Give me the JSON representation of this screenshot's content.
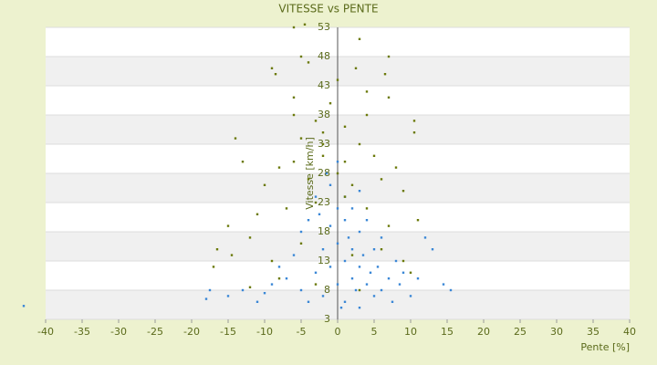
{
  "chart_data": {
    "type": "scatter",
    "title": "VITESSE vs PENTE",
    "x_label": "Pente [%]",
    "y_label": "Vitesse [km/h]",
    "xlim": [
      -40,
      40
    ],
    "xticks": [
      -40,
      -35,
      -30,
      -25,
      -20,
      -15,
      -10,
      -5,
      0,
      5,
      10,
      15,
      20,
      25,
      30,
      35,
      40
    ],
    "ylim": [
      3,
      53
    ],
    "yticks": [
      3,
      8,
      13,
      18,
      23,
      28,
      33,
      38,
      43,
      48,
      53
    ],
    "grid": true,
    "series": [
      {
        "color": "#3a87d6",
        "x": [
          -43,
          -18,
          -17.5,
          -15,
          -13,
          -11,
          -10,
          -9,
          -8,
          -7,
          -6,
          -5,
          -5,
          -4,
          -4,
          -3,
          -3,
          -2,
          -2,
          -1,
          -1,
          -1,
          0,
          0,
          0,
          0.5,
          1,
          1,
          1,
          1.5,
          2,
          2,
          2,
          2.5,
          3,
          3,
          3,
          3.5,
          4,
          4,
          4.5,
          5,
          5,
          5.5,
          6,
          6,
          7,
          7.5,
          8,
          8.5,
          9,
          10,
          11,
          12,
          13,
          14.5,
          15.5,
          0,
          -1.5,
          1,
          -2.5,
          3
        ],
        "values": [
          5.3,
          6.5,
          8,
          7,
          8,
          6,
          7.5,
          9,
          12,
          10,
          14,
          8,
          18,
          20,
          6,
          11,
          24,
          15,
          7,
          19,
          12,
          26,
          22,
          9,
          16,
          5,
          13,
          20,
          6,
          17,
          10,
          15,
          22,
          8,
          12,
          18,
          5,
          14,
          9,
          20,
          11,
          7,
          15,
          12,
          8,
          17,
          10,
          6,
          13,
          9,
          11,
          7,
          10,
          17,
          15,
          9,
          8,
          30,
          28,
          24,
          21,
          25
        ]
      },
      {
        "color": "#6b7a0a",
        "x": [
          -6,
          -4.5,
          3,
          -5,
          7,
          -9,
          -8.5,
          -4,
          2.5,
          6.5,
          -6,
          4,
          7,
          -6,
          -3,
          4,
          10.5,
          -14,
          -5,
          -2,
          3,
          10.5,
          -13,
          -8,
          -6,
          -2,
          1,
          5,
          8,
          -10,
          -4,
          0,
          2,
          6,
          9,
          -15,
          -11,
          -7,
          -3,
          1,
          4,
          7,
          11,
          -16.5,
          -14.5,
          -12,
          -9,
          -5,
          2,
          6,
          9,
          -17,
          -8,
          -3,
          3,
          10,
          -1,
          0,
          1,
          -2,
          -12
        ],
        "values": [
          53,
          53.5,
          51,
          48,
          48,
          46,
          45,
          47,
          46,
          45,
          41,
          42,
          41,
          38,
          37,
          38,
          37,
          34,
          34,
          35,
          33,
          35,
          30,
          29,
          30,
          31,
          30,
          31,
          29,
          26,
          27,
          28,
          26,
          27,
          25,
          19,
          21,
          22,
          23,
          24,
          22,
          19,
          20,
          15,
          14,
          17,
          13,
          16,
          14,
          15,
          13,
          12,
          10,
          9,
          8,
          11,
          40,
          44,
          36,
          33,
          8.5
        ]
      }
    ]
  }
}
